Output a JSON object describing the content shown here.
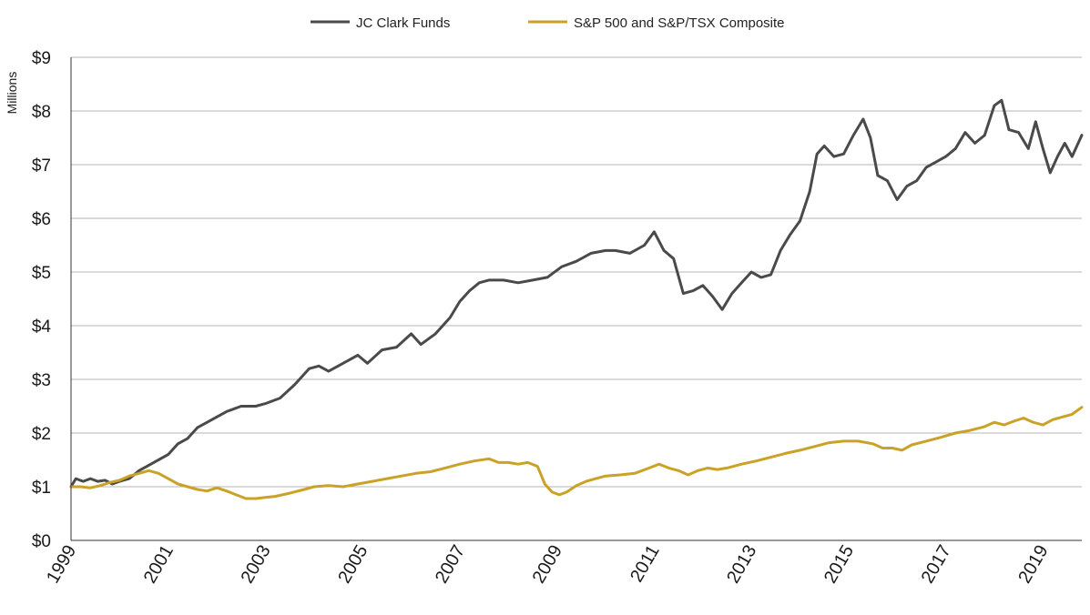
{
  "chart_data": {
    "type": "line",
    "title": "",
    "xlabel": "",
    "ylabel": "Millions",
    "xlim": [
      1999,
      2019.8
    ],
    "ylim": [
      0,
      9
    ],
    "grid": "horizontal",
    "legend_position": "top-center",
    "y_ticks": [
      {
        "value": 0,
        "label": "$0"
      },
      {
        "value": 1,
        "label": "$1"
      },
      {
        "value": 2,
        "label": "$2"
      },
      {
        "value": 3,
        "label": "$3"
      },
      {
        "value": 4,
        "label": "$4"
      },
      {
        "value": 5,
        "label": "$5"
      },
      {
        "value": 6,
        "label": "$6"
      },
      {
        "value": 7,
        "label": "$7"
      },
      {
        "value": 8,
        "label": "$8"
      },
      {
        "value": 9,
        "label": "$9"
      }
    ],
    "x_ticks": [
      {
        "value": 1999,
        "label": "1999"
      },
      {
        "value": 2001,
        "label": "2001"
      },
      {
        "value": 2003,
        "label": "2003"
      },
      {
        "value": 2005,
        "label": "2005"
      },
      {
        "value": 2007,
        "label": "2007"
      },
      {
        "value": 2009,
        "label": "2009"
      },
      {
        "value": 2011,
        "label": "2011"
      },
      {
        "value": 2013,
        "label": "2013"
      },
      {
        "value": 2015,
        "label": "2015"
      },
      {
        "value": 2017,
        "label": "2017"
      },
      {
        "value": 2019,
        "label": "2019"
      }
    ],
    "series": [
      {
        "name": "JC Clark Funds",
        "color": "#4a4a4a",
        "points": [
          [
            1999.0,
            1.0
          ],
          [
            1999.1,
            1.15
          ],
          [
            1999.25,
            1.1
          ],
          [
            1999.4,
            1.15
          ],
          [
            1999.55,
            1.1
          ],
          [
            1999.7,
            1.12
          ],
          [
            1999.85,
            1.05
          ],
          [
            2000.0,
            1.1
          ],
          [
            2000.2,
            1.15
          ],
          [
            2000.4,
            1.3
          ],
          [
            2000.6,
            1.4
          ],
          [
            2000.8,
            1.5
          ],
          [
            2001.0,
            1.6
          ],
          [
            2001.2,
            1.8
          ],
          [
            2001.4,
            1.9
          ],
          [
            2001.6,
            2.1
          ],
          [
            2001.8,
            2.2
          ],
          [
            2002.0,
            2.3
          ],
          [
            2002.2,
            2.4
          ],
          [
            2002.5,
            2.5
          ],
          [
            2002.8,
            2.5
          ],
          [
            2003.0,
            2.55
          ],
          [
            2003.3,
            2.65
          ],
          [
            2003.6,
            2.9
          ],
          [
            2003.9,
            3.2
          ],
          [
            2004.1,
            3.25
          ],
          [
            2004.3,
            3.15
          ],
          [
            2004.6,
            3.3
          ],
          [
            2004.9,
            3.45
          ],
          [
            2005.1,
            3.3
          ],
          [
            2005.4,
            3.55
          ],
          [
            2005.7,
            3.6
          ],
          [
            2006.0,
            3.85
          ],
          [
            2006.2,
            3.65
          ],
          [
            2006.5,
            3.85
          ],
          [
            2006.8,
            4.15
          ],
          [
            2007.0,
            4.45
          ],
          [
            2007.2,
            4.65
          ],
          [
            2007.4,
            4.8
          ],
          [
            2007.6,
            4.85
          ],
          [
            2007.9,
            4.85
          ],
          [
            2008.2,
            4.8
          ],
          [
            2008.5,
            4.85
          ],
          [
            2008.8,
            4.9
          ],
          [
            2009.1,
            5.1
          ],
          [
            2009.4,
            5.2
          ],
          [
            2009.7,
            5.35
          ],
          [
            2010.0,
            5.4
          ],
          [
            2010.2,
            5.4
          ],
          [
            2010.5,
            5.35
          ],
          [
            2010.8,
            5.5
          ],
          [
            2011.0,
            5.75
          ],
          [
            2011.2,
            5.4
          ],
          [
            2011.4,
            5.25
          ],
          [
            2011.6,
            4.6
          ],
          [
            2011.8,
            4.65
          ],
          [
            2012.0,
            4.75
          ],
          [
            2012.2,
            4.55
          ],
          [
            2012.4,
            4.3
          ],
          [
            2012.6,
            4.6
          ],
          [
            2012.8,
            4.8
          ],
          [
            2013.0,
            5.0
          ],
          [
            2013.2,
            4.9
          ],
          [
            2013.4,
            4.95
          ],
          [
            2013.6,
            5.4
          ],
          [
            2013.8,
            5.7
          ],
          [
            2014.0,
            5.95
          ],
          [
            2014.2,
            6.5
          ],
          [
            2014.35,
            7.2
          ],
          [
            2014.5,
            7.35
          ],
          [
            2014.7,
            7.15
          ],
          [
            2014.9,
            7.2
          ],
          [
            2015.1,
            7.55
          ],
          [
            2015.3,
            7.85
          ],
          [
            2015.45,
            7.5
          ],
          [
            2015.6,
            6.8
          ],
          [
            2015.8,
            6.7
          ],
          [
            2016.0,
            6.35
          ],
          [
            2016.2,
            6.6
          ],
          [
            2016.4,
            6.7
          ],
          [
            2016.6,
            6.95
          ],
          [
            2016.8,
            7.05
          ],
          [
            2017.0,
            7.15
          ],
          [
            2017.2,
            7.3
          ],
          [
            2017.4,
            7.6
          ],
          [
            2017.6,
            7.4
          ],
          [
            2017.8,
            7.55
          ],
          [
            2018.0,
            8.1
          ],
          [
            2018.15,
            8.2
          ],
          [
            2018.3,
            7.65
          ],
          [
            2018.5,
            7.6
          ],
          [
            2018.7,
            7.3
          ],
          [
            2018.85,
            7.8
          ],
          [
            2019.0,
            7.3
          ],
          [
            2019.15,
            6.85
          ],
          [
            2019.3,
            7.15
          ],
          [
            2019.45,
            7.4
          ],
          [
            2019.6,
            7.15
          ],
          [
            2019.8,
            7.55
          ]
        ]
      },
      {
        "name": "S&P 500 and S&P/TSX Composite",
        "color": "#c9a227",
        "points": [
          [
            1999.0,
            1.0
          ],
          [
            1999.2,
            1.0
          ],
          [
            1999.4,
            0.98
          ],
          [
            1999.6,
            1.02
          ],
          [
            1999.8,
            1.08
          ],
          [
            2000.0,
            1.12
          ],
          [
            2000.2,
            1.2
          ],
          [
            2000.4,
            1.25
          ],
          [
            2000.6,
            1.3
          ],
          [
            2000.8,
            1.25
          ],
          [
            2001.0,
            1.15
          ],
          [
            2001.2,
            1.05
          ],
          [
            2001.4,
            1.0
          ],
          [
            2001.6,
            0.95
          ],
          [
            2001.8,
            0.92
          ],
          [
            2002.0,
            0.98
          ],
          [
            2002.2,
            0.92
          ],
          [
            2002.4,
            0.85
          ],
          [
            2002.6,
            0.78
          ],
          [
            2002.8,
            0.78
          ],
          [
            2003.0,
            0.8
          ],
          [
            2003.2,
            0.82
          ],
          [
            2003.5,
            0.88
          ],
          [
            2003.8,
            0.95
          ],
          [
            2004.0,
            1.0
          ],
          [
            2004.3,
            1.02
          ],
          [
            2004.6,
            1.0
          ],
          [
            2004.9,
            1.05
          ],
          [
            2005.2,
            1.1
          ],
          [
            2005.5,
            1.15
          ],
          [
            2005.8,
            1.2
          ],
          [
            2006.1,
            1.25
          ],
          [
            2006.4,
            1.28
          ],
          [
            2006.7,
            1.35
          ],
          [
            2007.0,
            1.42
          ],
          [
            2007.3,
            1.48
          ],
          [
            2007.6,
            1.52
          ],
          [
            2007.8,
            1.45
          ],
          [
            2008.0,
            1.45
          ],
          [
            2008.2,
            1.42
          ],
          [
            2008.4,
            1.45
          ],
          [
            2008.6,
            1.38
          ],
          [
            2008.75,
            1.05
          ],
          [
            2008.9,
            0.9
          ],
          [
            2009.05,
            0.85
          ],
          [
            2009.2,
            0.9
          ],
          [
            2009.4,
            1.02
          ],
          [
            2009.6,
            1.1
          ],
          [
            2009.8,
            1.15
          ],
          [
            2010.0,
            1.2
          ],
          [
            2010.3,
            1.22
          ],
          [
            2010.6,
            1.25
          ],
          [
            2010.9,
            1.35
          ],
          [
            2011.1,
            1.42
          ],
          [
            2011.3,
            1.35
          ],
          [
            2011.5,
            1.3
          ],
          [
            2011.7,
            1.22
          ],
          [
            2011.9,
            1.3
          ],
          [
            2012.1,
            1.35
          ],
          [
            2012.3,
            1.32
          ],
          [
            2012.5,
            1.35
          ],
          [
            2012.8,
            1.42
          ],
          [
            2013.1,
            1.48
          ],
          [
            2013.4,
            1.55
          ],
          [
            2013.7,
            1.62
          ],
          [
            2014.0,
            1.68
          ],
          [
            2014.3,
            1.75
          ],
          [
            2014.6,
            1.82
          ],
          [
            2014.9,
            1.85
          ],
          [
            2015.2,
            1.85
          ],
          [
            2015.5,
            1.8
          ],
          [
            2015.7,
            1.72
          ],
          [
            2015.9,
            1.72
          ],
          [
            2016.1,
            1.68
          ],
          [
            2016.3,
            1.78
          ],
          [
            2016.6,
            1.85
          ],
          [
            2016.9,
            1.92
          ],
          [
            2017.2,
            2.0
          ],
          [
            2017.5,
            2.05
          ],
          [
            2017.8,
            2.12
          ],
          [
            2018.0,
            2.2
          ],
          [
            2018.2,
            2.15
          ],
          [
            2018.4,
            2.22
          ],
          [
            2018.6,
            2.28
          ],
          [
            2018.8,
            2.2
          ],
          [
            2019.0,
            2.15
          ],
          [
            2019.2,
            2.25
          ],
          [
            2019.4,
            2.3
          ],
          [
            2019.6,
            2.35
          ],
          [
            2019.8,
            2.48
          ]
        ]
      }
    ]
  }
}
